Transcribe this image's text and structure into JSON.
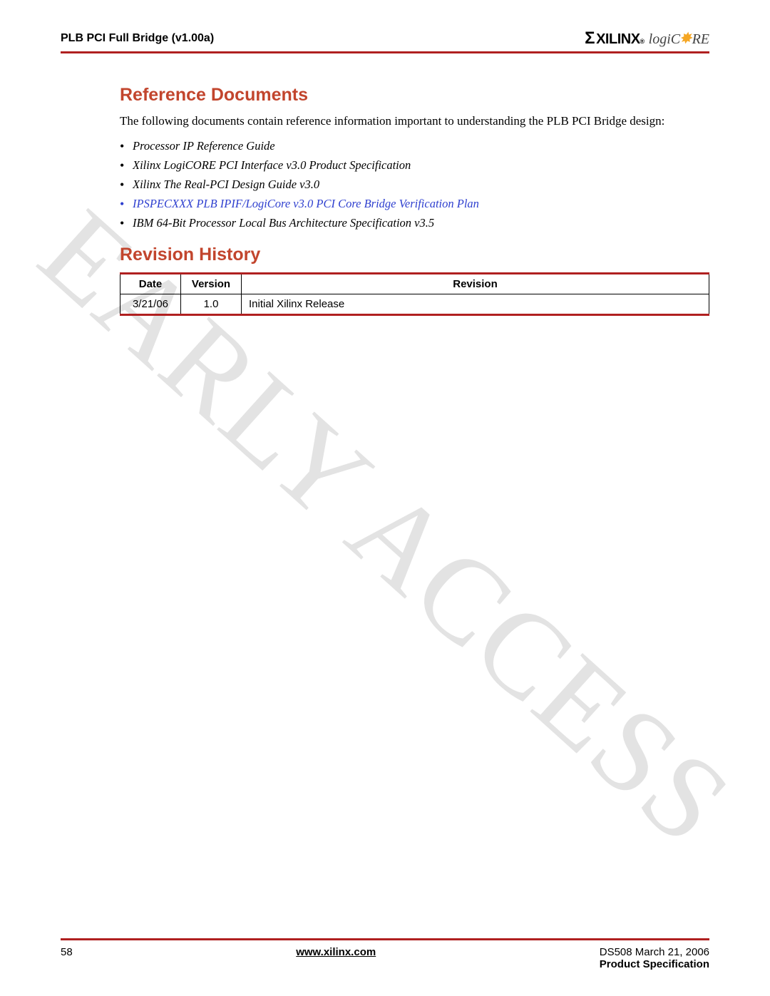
{
  "header": {
    "title": "PLB PCI Full Bridge (v1.00a)",
    "logo_text": "XILINX",
    "logo_sub": "logiC",
    "logo_sub2": "RE"
  },
  "section1": {
    "heading": "Reference Documents",
    "intro": "The following documents contain reference information important to understanding the PLB PCI Bridge design:",
    "items": [
      "Processor IP Reference Guide",
      "Xilinx LogiCORE PCI Interface v3.0 Product Specification",
      "Xilinx The Real-PCI Design Guide v3.0",
      "IPSPECXXX PLB IPIF/LogiCore v3.0 PCI Core Bridge Verification Plan",
      "IBM 64-Bit Processor Local Bus Architecture Specification v3.5"
    ]
  },
  "section2": {
    "heading": "Revision History",
    "columns": [
      "Date",
      "Version",
      "Revision"
    ],
    "rows": [
      [
        "3/21/06",
        "1.0",
        "Initial Xilinx Release"
      ]
    ]
  },
  "watermark": "EARLY ACCESS",
  "footer": {
    "page": "58",
    "url": "www.xilinx.com",
    "doc_id": "DS508 March 21, 2006",
    "doc_label": "Product Specification"
  },
  "colors": {
    "rule": "#b02020",
    "heading": "#c2452d",
    "link": "#2e3fcf",
    "watermark": "#e3e3e3"
  }
}
